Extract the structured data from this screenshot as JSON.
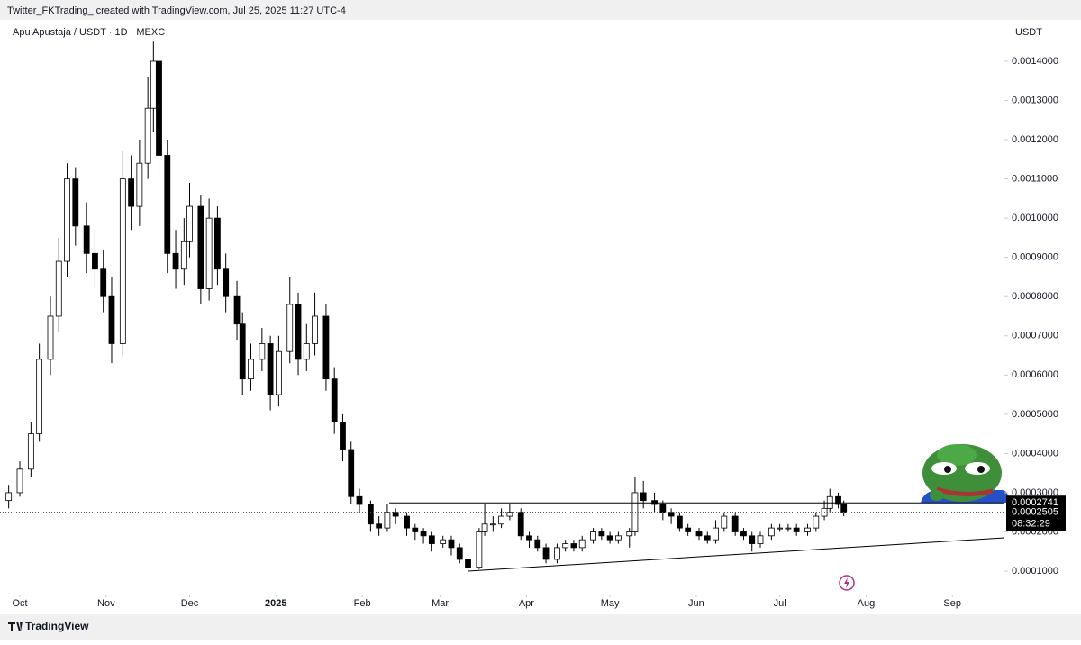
{
  "header": {
    "caption": "Twitter_FKTrading_ created with TradingView.com, Jul 25, 2025 11:27 UTC-4",
    "symbol": "Apu Apustaja / USDT · 1D · MEXC",
    "currency": "USDT",
    "countdown": "08:32:29",
    "brand": "TradingView"
  },
  "chart_data": {
    "type": "candlestick",
    "x": [
      -4,
      0,
      4,
      7,
      11,
      14,
      17,
      20,
      24,
      27,
      30,
      33,
      37,
      40,
      43,
      46,
      48,
      50,
      53,
      56,
      59,
      61,
      65,
      68,
      71,
      74,
      78,
      80,
      83,
      87,
      90,
      93,
      97,
      100,
      103,
      106,
      110,
      113,
      116,
      119,
      122,
      126,
      129,
      132,
      135,
      139,
      142,
      145,
      148,
      152,
      155,
      158,
      161,
      165,
      167,
      170,
      173,
      176,
      180,
      183,
      186,
      189,
      193,
      196,
      199,
      202,
      206,
      209,
      212,
      215,
      219,
      221,
      224,
      228,
      231,
      234,
      237,
      240,
      244,
      247,
      250,
      253,
      257,
      260,
      263,
      266,
      270,
      273,
      276,
      279,
      283,
      286,
      289,
      291,
      294,
      296
    ],
    "open": [
      0.00028,
      0.0003,
      0.00036,
      0.00045,
      0.00064,
      0.00075,
      0.00089,
      0.0011,
      0.00098,
      0.00091,
      0.00087,
      0.0008,
      0.00068,
      0.0011,
      0.00103,
      0.00114,
      0.00128,
      0.0014,
      0.00116,
      0.00091,
      0.00087,
      0.00094,
      0.00103,
      0.00082,
      0.001,
      0.00087,
      0.0008,
      0.00073,
      0.00059,
      0.00064,
      0.00068,
      0.00055,
      0.00066,
      0.00078,
      0.00064,
      0.00068,
      0.00075,
      0.00059,
      0.00048,
      0.00041,
      0.00029,
      0.00027,
      0.00022,
      0.00021,
      0.00025,
      0.00024,
      0.00021,
      0.0002,
      0.00019,
      0.00017,
      0.00018,
      0.00016,
      0.00013,
      0.00011,
      0.0002,
      0.00022,
      0.00022,
      0.00024,
      0.00025,
      0.00019,
      0.00018,
      0.00016,
      0.00013,
      0.00016,
      0.00017,
      0.00016,
      0.00018,
      0.0002,
      0.00019,
      0.00018,
      0.00019,
      0.0002,
      0.0003,
      0.00028,
      0.00027,
      0.00025,
      0.00024,
      0.00021,
      0.0002,
      0.00019,
      0.00018,
      0.00021,
      0.00024,
      0.0002,
      0.00019,
      0.00017,
      0.00019,
      0.00021,
      0.00021,
      0.00021,
      0.0002,
      0.00021,
      0.00024,
      0.00026,
      0.00029,
      0.00027
    ],
    "high": [
      0.00032,
      0.00038,
      0.00048,
      0.00068,
      0.0008,
      0.00095,
      0.00114,
      0.00113,
      0.00104,
      0.00097,
      0.00092,
      0.00085,
      0.00117,
      0.00116,
      0.0012,
      0.00136,
      0.00145,
      0.00142,
      0.0012,
      0.00097,
      0.001,
      0.00109,
      0.00106,
      0.00105,
      0.00103,
      0.00091,
      0.00084,
      0.00076,
      0.00068,
      0.00072,
      0.0007,
      0.0007,
      0.00085,
      0.00081,
      0.00073,
      0.00081,
      0.00078,
      0.00062,
      0.0005,
      0.00043,
      0.00031,
      0.00028,
      0.00024,
      0.00027,
      0.00026,
      0.00025,
      0.00022,
      0.00021,
      0.0002,
      0.00019,
      0.00019,
      0.00017,
      0.00014,
      0.00021,
      0.00027,
      0.00024,
      0.00026,
      0.00027,
      0.00026,
      0.0002,
      0.00019,
      0.00017,
      0.00017,
      0.00018,
      0.00018,
      0.00019,
      0.00021,
      0.00021,
      0.0002,
      0.0002,
      0.00021,
      0.00034,
      0.00033,
      0.0003,
      0.00028,
      0.00026,
      0.00025,
      0.00022,
      0.00021,
      0.0002,
      0.00023,
      0.00025,
      0.00025,
      0.00021,
      0.0002,
      0.0002,
      0.00022,
      0.00022,
      0.00022,
      0.00022,
      0.00022,
      0.00025,
      0.00028,
      0.00031,
      0.0003,
      0.00028
    ],
    "low": [
      0.00026,
      0.00029,
      0.00034,
      0.00043,
      0.0006,
      0.00071,
      0.00085,
      0.00093,
      0.00086,
      0.00082,
      0.00076,
      0.00063,
      0.00065,
      0.00097,
      0.00098,
      0.0011,
      0.00122,
      0.0011,
      0.00086,
      0.00082,
      0.00083,
      0.0009,
      0.00078,
      0.00079,
      0.00083,
      0.00076,
      0.00069,
      0.00055,
      0.00056,
      0.00061,
      0.00051,
      0.00052,
      0.00063,
      0.0006,
      0.00061,
      0.00065,
      0.00056,
      0.00045,
      0.00038,
      0.00027,
      0.00025,
      0.0002,
      0.00019,
      0.0002,
      0.00022,
      0.00019,
      0.00018,
      0.00017,
      0.00015,
      0.00016,
      0.00014,
      0.00012,
      0.0001,
      0.000105,
      0.00019,
      0.0002,
      0.00021,
      0.00023,
      0.00018,
      0.00016,
      0.00015,
      0.00012,
      0.00012,
      0.00015,
      0.00015,
      0.00015,
      0.00017,
      0.00018,
      0.00017,
      0.00017,
      0.00016,
      0.00019,
      0.00026,
      0.00025,
      0.00023,
      0.00022,
      0.0002,
      0.00019,
      0.00018,
      0.00017,
      0.00017,
      0.0002,
      0.00019,
      0.00018,
      0.00015,
      0.00016,
      0.00018,
      0.0002,
      0.0002,
      0.00019,
      0.00019,
      0.0002,
      0.00023,
      0.00025,
      0.00026,
      0.00024
    ],
    "close": [
      0.0003,
      0.00036,
      0.00045,
      0.00064,
      0.00075,
      0.00089,
      0.0011,
      0.00098,
      0.00091,
      0.00087,
      0.0008,
      0.00068,
      0.0011,
      0.00103,
      0.00114,
      0.00128,
      0.0014,
      0.00116,
      0.00091,
      0.00087,
      0.00094,
      0.00103,
      0.00082,
      0.001,
      0.00087,
      0.0008,
      0.00073,
      0.00059,
      0.00064,
      0.00068,
      0.00055,
      0.00066,
      0.00078,
      0.00064,
      0.00068,
      0.00075,
      0.00059,
      0.00048,
      0.00041,
      0.00029,
      0.00027,
      0.00022,
      0.00021,
      0.00025,
      0.00024,
      0.00021,
      0.0002,
      0.00019,
      0.00017,
      0.00018,
      0.00016,
      0.00013,
      0.00011,
      0.0002,
      0.00022,
      0.00022,
      0.00024,
      0.00025,
      0.00019,
      0.00018,
      0.00016,
      0.00013,
      0.00016,
      0.00017,
      0.00016,
      0.00018,
      0.0002,
      0.00019,
      0.00018,
      0.00019,
      0.0002,
      0.0003,
      0.00028,
      0.00027,
      0.00025,
      0.00024,
      0.00021,
      0.0002,
      0.00019,
      0.00018,
      0.00021,
      0.00024,
      0.0002,
      0.00019,
      0.00017,
      0.00019,
      0.00021,
      0.00021,
      0.00021,
      0.0002,
      0.00021,
      0.00024,
      0.00026,
      0.00029,
      0.00027,
      0.0002505
    ],
    "up_color": "#ffffff",
    "down_color": "#000000",
    "border_color": "#000000",
    "xlim": [
      -7.12,
      353.7
    ],
    "xticks": [
      {
        "value": 0,
        "label": "Oct"
      },
      {
        "value": 31,
        "label": "Nov"
      },
      {
        "value": 61,
        "label": "Dec"
      },
      {
        "value": 92,
        "label": "2025"
      },
      {
        "value": 123,
        "label": "Feb"
      },
      {
        "value": 151,
        "label": "Mar"
      },
      {
        "value": 182,
        "label": "Apr"
      },
      {
        "value": 212,
        "label": "May"
      },
      {
        "value": 243,
        "label": "Jun"
      },
      {
        "value": 273,
        "label": "Jul"
      },
      {
        "value": 304,
        "label": "Aug"
      },
      {
        "value": 335,
        "label": "Sep"
      }
    ],
    "ylim": [
      4.03e-05,
      0.0015056
    ],
    "yticks": [
      {
        "value": 0.0001,
        "label": "0.0001000"
      },
      {
        "value": 0.0002,
        "label": "0.0002000"
      },
      {
        "value": 0.0003,
        "label": "0.0003000"
      },
      {
        "value": 0.0004,
        "label": "0.0004000"
      },
      {
        "value": 0.0005,
        "label": "0.0005000"
      },
      {
        "value": 0.0006,
        "label": "0.0006000"
      },
      {
        "value": 0.0007,
        "label": "0.0007000"
      },
      {
        "value": 0.0008,
        "label": "0.0008000"
      },
      {
        "value": 0.0009,
        "label": "0.0009000"
      },
      {
        "value": 0.001,
        "label": "0.0010000"
      },
      {
        "value": 0.0011,
        "label": "0.0011000"
      },
      {
        "value": 0.0012,
        "label": "0.0012000"
      },
      {
        "value": 0.0013,
        "label": "0.0013000"
      },
      {
        "value": 0.0014,
        "label": "0.0014000"
      }
    ],
    "horizontal_line": {
      "x_start": 132.7,
      "value": 0.0002741
    },
    "trend_line": {
      "x": [
        161,
        353.7
      ],
      "y": [
        0.0001,
        0.000185
      ]
    }
  }
}
